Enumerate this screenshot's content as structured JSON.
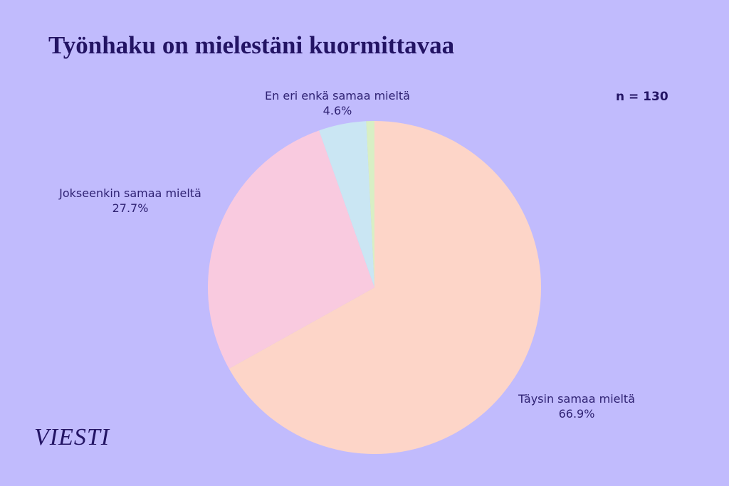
{
  "chart_data": {
    "type": "pie",
    "title": "Työnhaku on mielestäni kuormittavaa",
    "annotation": "n = 130",
    "slices": [
      {
        "label": "Täysin samaa mieltä",
        "value": 66.9,
        "value_label": "66.9%",
        "color": "#fdd5c8"
      },
      {
        "label": "Jokseenkin samaa mieltä",
        "value": 27.7,
        "value_label": "27.7%",
        "color": "#f9cadf"
      },
      {
        "label": "En eri enkä samaa mieltä",
        "value": 4.6,
        "value_label": "4.6%",
        "color": "#cae6f3"
      },
      {
        "label": "",
        "value": 0.8,
        "value_label": "",
        "color": "#d8efc4"
      }
    ],
    "start": "top",
    "direction": "clockwise"
  },
  "logo": "VIESTI"
}
